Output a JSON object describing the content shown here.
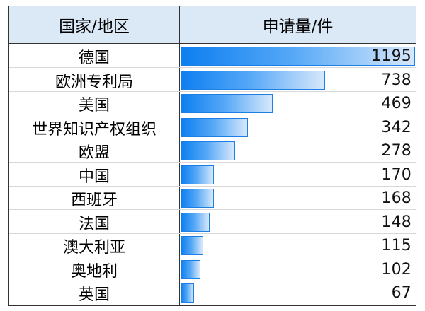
{
  "table": {
    "header_country": "国家/地区",
    "header_value": "申请量/件"
  },
  "chart_data": {
    "type": "bar",
    "categories": [
      "德国",
      "欧洲专利局",
      "美国",
      "世界知识产权组织",
      "欧盟",
      "中国",
      "西班牙",
      "法国",
      "澳大利亚",
      "奥地利",
      "英国"
    ],
    "values": [
      1195,
      738,
      469,
      342,
      278,
      170,
      168,
      148,
      115,
      102,
      67
    ],
    "xlim": [
      0,
      1195
    ],
    "grid": false,
    "legend": "none"
  },
  "colors": {
    "header_bg": "#dbe9f7",
    "bar_start": "#0d7ff0",
    "bar_end": "#d7e8fb",
    "border": "#333333"
  }
}
